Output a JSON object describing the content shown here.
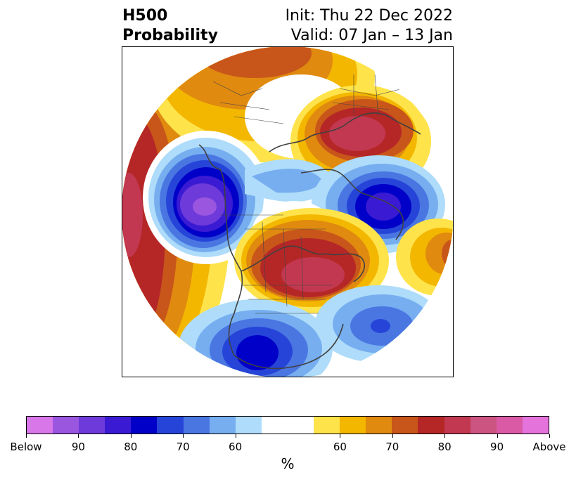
{
  "header": {
    "title_line1": "H500",
    "title_line2": "Probability",
    "init_text": "Init: Thu 22 Dec 2022",
    "valid_text": "Valid: 07 Jan – 13 Jan"
  },
  "colorbar": {
    "unit": "%",
    "colors": [
      "#d877e8",
      "#9b56e0",
      "#6e3ada",
      "#3a1bd3",
      "#0000c8",
      "#2645d8",
      "#4a76e2",
      "#76aef0",
      "#aedcfa",
      "#ffffff",
      "#ffffff",
      "#ffe34b",
      "#f3b700",
      "#e08a10",
      "#c8561a",
      "#b52727",
      "#c23850",
      "#cc5480",
      "#da5aa6",
      "#e474dc"
    ],
    "tick_labels": [
      "Below",
      "90",
      "80",
      "70",
      "60",
      "60",
      "70",
      "80",
      "90",
      "Above"
    ]
  },
  "map": {
    "projection": "polar-stereographic",
    "fields": {
      "blue_center_west_pacific": "below",
      "blue_center_north_atlantic": "below",
      "blue_center_southern_us": "below",
      "blue_center_subtropical_atlantic": "below",
      "red_center_east_siberia": "above",
      "red_center_arctic_canada": "above",
      "red_center_north_pacific": "above"
    },
    "colors": {
      "coast": "#404040",
      "border": "#444444"
    }
  }
}
